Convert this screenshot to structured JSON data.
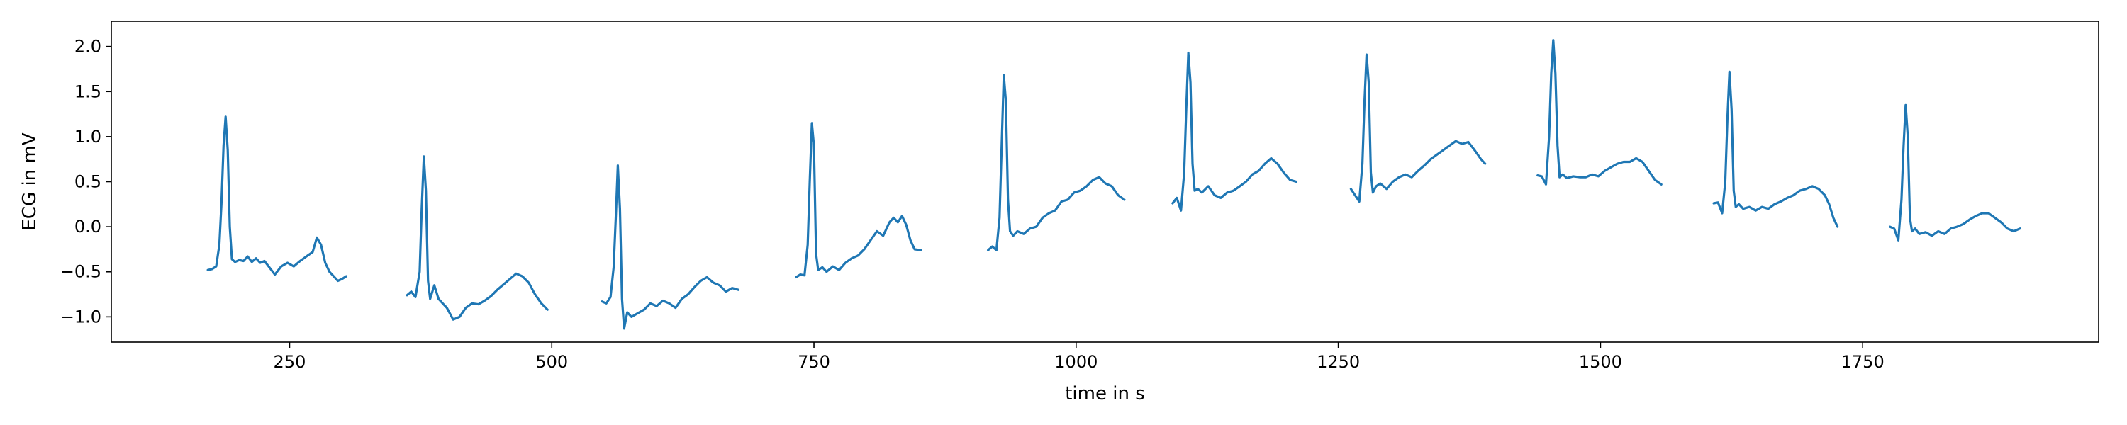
{
  "chart_data": {
    "type": "line",
    "title": "",
    "xlabel": "time in s",
    "ylabel": "ECG in mV",
    "xlim": [
      80,
      1975
    ],
    "ylim": [
      -1.28,
      2.28
    ],
    "xticks": [
      250,
      500,
      750,
      1000,
      1250,
      1500,
      1750
    ],
    "yticks": [
      -1.0,
      -0.5,
      0.0,
      0.5,
      1.0,
      1.5,
      2.0
    ],
    "xtick_labels": [
      "250",
      "500",
      "750",
      "1000",
      "1250",
      "1500",
      "1750"
    ],
    "ytick_labels": [
      "−1.0",
      "−0.5",
      "0.0",
      "0.5",
      "1.0",
      "1.5",
      "2.0"
    ],
    "grid": false,
    "color": "#1f77b4",
    "segments": [
      {
        "x": [
          172,
          176,
          180,
          183,
          185,
          187,
          189,
          191,
          193,
          195,
          198,
          202,
          206,
          210,
          214,
          218,
          222,
          226,
          230,
          236,
          242,
          248,
          254,
          260,
          266,
          272,
          276,
          280,
          284,
          288,
          292,
          296,
          300,
          304
        ],
        "y": [
          -0.48,
          -0.47,
          -0.44,
          -0.2,
          0.25,
          0.9,
          1.22,
          0.85,
          0.0,
          -0.36,
          -0.39,
          -0.37,
          -0.38,
          -0.33,
          -0.39,
          -0.35,
          -0.4,
          -0.38,
          -0.44,
          -0.53,
          -0.44,
          -0.4,
          -0.44,
          -0.38,
          -0.33,
          -0.28,
          -0.12,
          -0.2,
          -0.4,
          -0.5,
          -0.55,
          -0.6,
          -0.58,
          -0.55
        ]
      },
      {
        "x": [
          362,
          366,
          370,
          374,
          376,
          378,
          380,
          382,
          384,
          388,
          392,
          396,
          400,
          406,
          412,
          418,
          424,
          430,
          436,
          442,
          448,
          454,
          460,
          466,
          472,
          478,
          484,
          490,
          496
        ],
        "y": [
          -0.76,
          -0.72,
          -0.78,
          -0.5,
          0.2,
          0.78,
          0.4,
          -0.6,
          -0.8,
          -0.65,
          -0.8,
          -0.85,
          -0.9,
          -1.03,
          -1.0,
          -0.9,
          -0.85,
          -0.86,
          -0.82,
          -0.77,
          -0.7,
          -0.64,
          -0.58,
          -0.52,
          -0.55,
          -0.62,
          -0.75,
          -0.85,
          -0.92
        ]
      },
      {
        "x": [
          548,
          552,
          556,
          559,
          561,
          563,
          565,
          567,
          569,
          572,
          576,
          582,
          588,
          594,
          600,
          606,
          612,
          618,
          624,
          630,
          636,
          642,
          648,
          654,
          660,
          666,
          672,
          678
        ],
        "y": [
          -0.83,
          -0.85,
          -0.78,
          -0.45,
          0.1,
          0.68,
          0.2,
          -0.8,
          -1.13,
          -0.95,
          -1.0,
          -0.96,
          -0.92,
          -0.85,
          -0.88,
          -0.82,
          -0.85,
          -0.9,
          -0.8,
          -0.75,
          -0.67,
          -0.6,
          -0.56,
          -0.62,
          -0.65,
          -0.72,
          -0.68,
          -0.7
        ]
      },
      {
        "x": [
          733,
          737,
          741,
          744,
          746,
          748,
          750,
          752,
          754,
          758,
          762,
          768,
          774,
          780,
          786,
          792,
          798,
          804,
          810,
          816,
          822,
          826,
          830,
          834,
          838,
          842,
          846,
          852
        ],
        "y": [
          -0.56,
          -0.53,
          -0.54,
          -0.2,
          0.5,
          1.15,
          0.9,
          -0.3,
          -0.48,
          -0.45,
          -0.5,
          -0.44,
          -0.48,
          -0.4,
          -0.35,
          -0.32,
          -0.25,
          -0.15,
          -0.05,
          -0.1,
          0.05,
          0.1,
          0.05,
          0.12,
          0.02,
          -0.15,
          -0.25,
          -0.26
        ]
      },
      {
        "x": [
          916,
          920,
          924,
          927,
          929,
          931,
          933,
          935,
          937,
          940,
          944,
          950,
          956,
          962,
          968,
          974,
          980,
          986,
          992,
          998,
          1004,
          1010,
          1016,
          1022,
          1028,
          1034,
          1040,
          1046
        ],
        "y": [
          -0.26,
          -0.22,
          -0.26,
          0.1,
          0.9,
          1.68,
          1.4,
          0.3,
          -0.05,
          -0.1,
          -0.05,
          -0.08,
          -0.02,
          0.0,
          0.1,
          0.15,
          0.18,
          0.28,
          0.3,
          0.38,
          0.4,
          0.45,
          0.52,
          0.55,
          0.48,
          0.45,
          0.35,
          0.3
        ]
      },
      {
        "x": [
          1092,
          1096,
          1100,
          1103,
          1105,
          1107,
          1109,
          1111,
          1113,
          1116,
          1120,
          1126,
          1132,
          1138,
          1144,
          1150,
          1156,
          1162,
          1168,
          1174,
          1180,
          1186,
          1192,
          1198,
          1204,
          1210
        ],
        "y": [
          0.26,
          0.32,
          0.18,
          0.6,
          1.3,
          1.93,
          1.6,
          0.7,
          0.4,
          0.42,
          0.38,
          0.45,
          0.35,
          0.32,
          0.38,
          0.4,
          0.45,
          0.5,
          0.58,
          0.62,
          0.7,
          0.76,
          0.7,
          0.6,
          0.52,
          0.5
        ]
      },
      {
        "x": [
          1262,
          1266,
          1270,
          1273,
          1275,
          1277,
          1279,
          1281,
          1283,
          1286,
          1290,
          1296,
          1302,
          1308,
          1314,
          1320,
          1326,
          1332,
          1338,
          1344,
          1350,
          1356,
          1362,
          1368,
          1374,
          1380,
          1386,
          1390
        ],
        "y": [
          0.42,
          0.35,
          0.28,
          0.7,
          1.4,
          1.91,
          1.6,
          0.6,
          0.38,
          0.45,
          0.48,
          0.42,
          0.5,
          0.55,
          0.58,
          0.55,
          0.62,
          0.68,
          0.75,
          0.8,
          0.85,
          0.9,
          0.95,
          0.92,
          0.94,
          0.85,
          0.75,
          0.7
        ]
      },
      {
        "x": [
          1440,
          1444,
          1448,
          1451,
          1453,
          1455,
          1457,
          1459,
          1461,
          1464,
          1468,
          1474,
          1480,
          1486,
          1492,
          1498,
          1504,
          1510,
          1516,
          1522,
          1528,
          1534,
          1540,
          1546,
          1552,
          1558
        ],
        "y": [
          0.57,
          0.56,
          0.47,
          1.0,
          1.7,
          2.07,
          1.7,
          0.9,
          0.55,
          0.58,
          0.54,
          0.56,
          0.55,
          0.55,
          0.58,
          0.56,
          0.62,
          0.66,
          0.7,
          0.72,
          0.72,
          0.76,
          0.72,
          0.62,
          0.52,
          0.47
        ]
      },
      {
        "x": [
          1608,
          1612,
          1616,
          1619,
          1621,
          1623,
          1625,
          1627,
          1629,
          1632,
          1636,
          1642,
          1648,
          1654,
          1660,
          1666,
          1672,
          1678,
          1684,
          1690,
          1696,
          1702,
          1708,
          1714,
          1718,
          1722,
          1726
        ],
        "y": [
          0.26,
          0.27,
          0.15,
          0.5,
          1.2,
          1.72,
          1.3,
          0.4,
          0.22,
          0.25,
          0.2,
          0.22,
          0.18,
          0.22,
          0.2,
          0.25,
          0.28,
          0.32,
          0.35,
          0.4,
          0.42,
          0.45,
          0.42,
          0.35,
          0.25,
          0.1,
          0.0
        ]
      },
      {
        "x": [
          1776,
          1780,
          1784,
          1787,
          1789,
          1791,
          1793,
          1795,
          1797,
          1800,
          1804,
          1810,
          1816,
          1822,
          1828,
          1834,
          1840,
          1846,
          1852,
          1858,
          1864,
          1870,
          1876,
          1882,
          1888,
          1894,
          1900
        ],
        "y": [
          0.0,
          -0.02,
          -0.15,
          0.3,
          0.9,
          1.35,
          1.0,
          0.1,
          -0.05,
          -0.02,
          -0.08,
          -0.06,
          -0.1,
          -0.05,
          -0.08,
          -0.02,
          0.0,
          0.03,
          0.08,
          0.12,
          0.15,
          0.15,
          0.1,
          0.05,
          -0.02,
          -0.05,
          -0.02
        ]
      }
    ]
  }
}
